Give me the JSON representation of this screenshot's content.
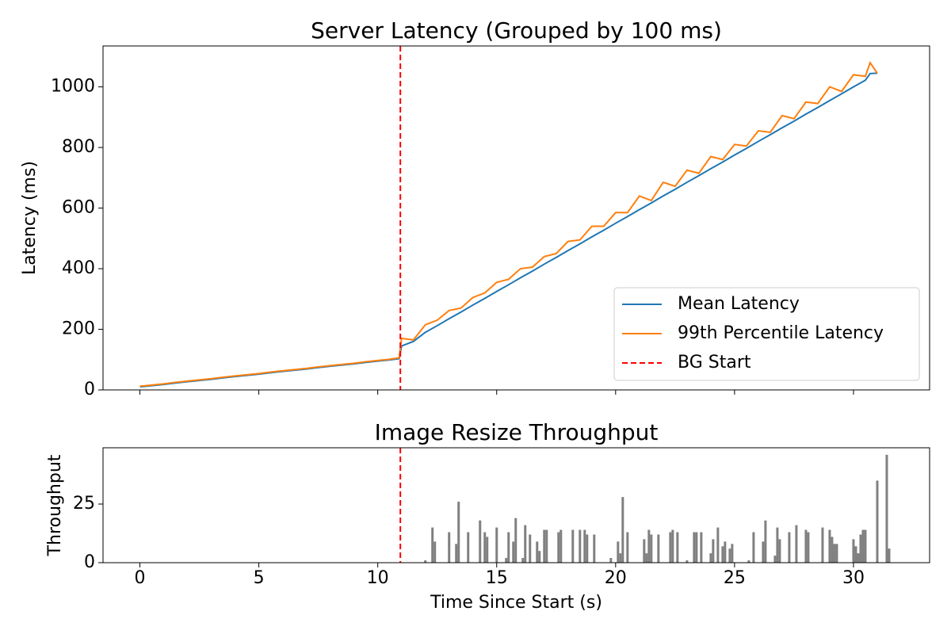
{
  "chart_data": [
    {
      "type": "line",
      "title": "Server Latency (Grouped by 100 ms)",
      "ylabel": "Latency (ms)",
      "x": [
        0,
        0.5,
        1,
        1.5,
        2,
        2.5,
        3,
        3.5,
        4,
        4.5,
        5,
        5.5,
        6,
        6.5,
        7,
        7.5,
        8,
        8.5,
        9,
        9.5,
        10,
        10.5,
        10.9,
        11,
        11.5,
        12,
        12.5,
        13,
        13.5,
        14,
        14.5,
        15,
        15.5,
        16,
        16.5,
        17,
        17.5,
        18,
        18.5,
        19,
        19.5,
        20,
        20.5,
        21,
        21.5,
        22,
        22.5,
        23,
        23.5,
        24,
        24.5,
        25,
        25.5,
        26,
        26.5,
        27,
        27.5,
        28,
        28.5,
        29,
        29.5,
        30,
        30.5,
        30.7,
        31
      ],
      "series": [
        {
          "name": "Mean Latency",
          "color": "#1f77b4",
          "values": [
            10,
            14,
            18,
            23,
            27,
            31,
            35,
            40,
            44,
            48,
            52,
            57,
            61,
            65,
            69,
            74,
            78,
            82,
            86,
            91,
            95,
            99,
            103,
            145,
            160,
            190,
            212,
            235,
            257,
            280,
            302,
            325,
            347,
            370,
            392,
            415,
            437,
            460,
            482,
            505,
            527,
            550,
            572,
            595,
            617,
            640,
            662,
            685,
            707,
            730,
            752,
            775,
            797,
            820,
            842,
            865,
            887,
            910,
            932,
            955,
            977,
            1000,
            1022,
            1044,
            1045
          ]
        },
        {
          "name": "99th Percentile Latency",
          "color": "#ff7f0e",
          "values": [
            12,
            16,
            20,
            25,
            29,
            33,
            37,
            42,
            46,
            50,
            54,
            59,
            63,
            67,
            71,
            76,
            80,
            84,
            88,
            93,
            97,
            101,
            106,
            170,
            165,
            215,
            230,
            262,
            270,
            305,
            320,
            355,
            365,
            400,
            405,
            440,
            450,
            490,
            495,
            540,
            540,
            585,
            585,
            640,
            625,
            685,
            672,
            725,
            715,
            770,
            760,
            810,
            805,
            855,
            850,
            905,
            895,
            950,
            945,
            1000,
            985,
            1040,
            1035,
            1080,
            1045
          ]
        }
      ],
      "vlines": [
        {
          "name": "BG Start",
          "x": 10.95,
          "color": "#ff0000"
        }
      ],
      "xlim": [
        -1.55,
        33.2
      ],
      "xticks": [
        0,
        5,
        10,
        15,
        20,
        25,
        30
      ],
      "ylim": [
        0,
        1135
      ],
      "yticks": [
        0,
        200,
        400,
        600,
        800,
        1000
      ],
      "legend": "lower right"
    },
    {
      "type": "bar",
      "title": "Image Resize Throughput",
      "ylabel": "Throughput",
      "xlabel": "Time Since Start (s)",
      "x": [
        12.0,
        12.3,
        12.4,
        13.0,
        13.3,
        13.4,
        13.8,
        14.3,
        14.5,
        14.6,
        15.0,
        15.4,
        15.5,
        15.7,
        15.8,
        16.1,
        16.2,
        16.4,
        16.7,
        16.8,
        17.0,
        17.1,
        17.6,
        17.7,
        18.2,
        18.5,
        18.7,
        18.8,
        19.1,
        19.8,
        20.1,
        20.2,
        20.3,
        20.5,
        21.2,
        21.3,
        21.4,
        21.5,
        21.8,
        22.3,
        22.4,
        22.6,
        23.0,
        23.3,
        23.4,
        23.6,
        24.0,
        24.1,
        24.3,
        24.5,
        24.6,
        24.8,
        24.9,
        25.6,
        25.8,
        26.2,
        26.3,
        26.7,
        26.8,
        26.9,
        27.3,
        27.6,
        28.0,
        28.1,
        28.7,
        29.0,
        29.1,
        29.2,
        29.3,
        30.0,
        30.1,
        30.2,
        30.3,
        30.4,
        30.5,
        31.0,
        31.4,
        31.5
      ],
      "values": [
        1,
        15,
        9,
        13,
        8,
        26,
        13,
        18,
        13,
        11,
        15,
        2,
        13,
        9,
        19,
        2,
        16,
        12,
        9,
        5,
        14,
        14,
        13,
        14,
        14,
        14,
        14,
        12,
        12,
        2,
        9,
        4,
        28,
        13,
        10,
        4,
        14,
        12,
        12,
        13,
        14,
        13,
        1,
        13,
        13,
        13,
        4,
        10,
        15,
        7,
        9,
        6,
        8,
        1,
        13,
        9,
        18,
        3,
        15,
        10,
        13,
        16,
        14,
        13,
        15,
        14,
        11,
        8,
        8,
        10,
        7,
        4,
        12,
        14,
        14,
        35,
        46,
        6
      ],
      "color": "#808080",
      "vlines": [
        {
          "x": 10.95,
          "color": "#ff0000"
        }
      ],
      "xlim": [
        -1.55,
        33.2
      ],
      "xticks": [
        0,
        5,
        10,
        15,
        20,
        25,
        30
      ],
      "ylim": [
        0,
        49
      ],
      "yticks": [
        0,
        25
      ]
    }
  ]
}
